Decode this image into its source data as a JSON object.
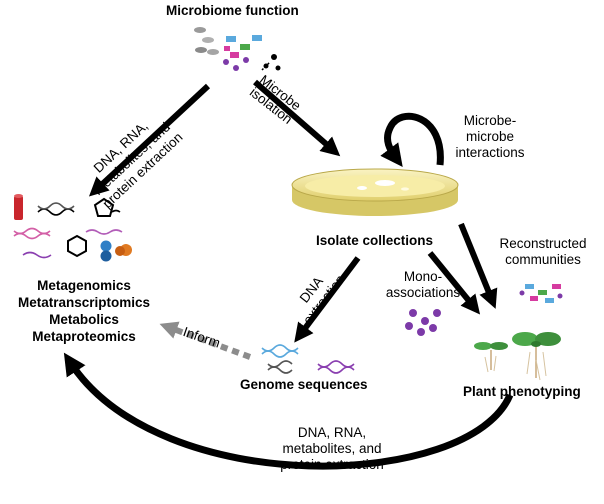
{
  "labels": {
    "microbiome_function": "Microbiome function",
    "microbe_isolation": [
      "Microbe",
      "isolation"
    ],
    "extraction_top": [
      "DNA, RNA,",
      "metabolites, and",
      "protein extraction"
    ],
    "microbe_interactions": [
      "Microbe-",
      "microbe",
      "interactions"
    ],
    "isolate_collections": "Isolate collections",
    "dna_extraction": [
      "DNA",
      "extraction"
    ],
    "reconstructed_communities": [
      "Reconstructed",
      "communities"
    ],
    "mono_associations": [
      "Mono-",
      "associations"
    ],
    "omics": [
      "Metagenomics",
      "Metatranscriptomics",
      "Metabolics",
      "Metaproteomics"
    ],
    "inform": "Inform",
    "genome_sequences": "Genome sequences",
    "plant_phenotyping": "Plant phenotyping",
    "extraction_bottom": [
      "DNA, RNA,",
      "metabolites, and",
      "protein extraction"
    ]
  },
  "colors": {
    "arrow": "#000000",
    "inform_arrow": "#8c8c8c",
    "dish": "#f3e79a",
    "dna_blue": "#5aa9dd",
    "dna_purple": "#8a3fb0",
    "dna_pink": "#d35fa6",
    "molecule_red": "#c9262c",
    "molecule_blue": "#2f7fc6",
    "molecule_orange": "#e07a22",
    "green": "#4ca84a",
    "magenta": "#d63ba0",
    "purple_dot": "#7c3aa8"
  },
  "icons": [
    "microbe-cluster-icon",
    "petri-dish-icon",
    "molecules-icon",
    "dna-strands-icon",
    "seedlings-icon",
    "cycle-arrow-icon"
  ]
}
